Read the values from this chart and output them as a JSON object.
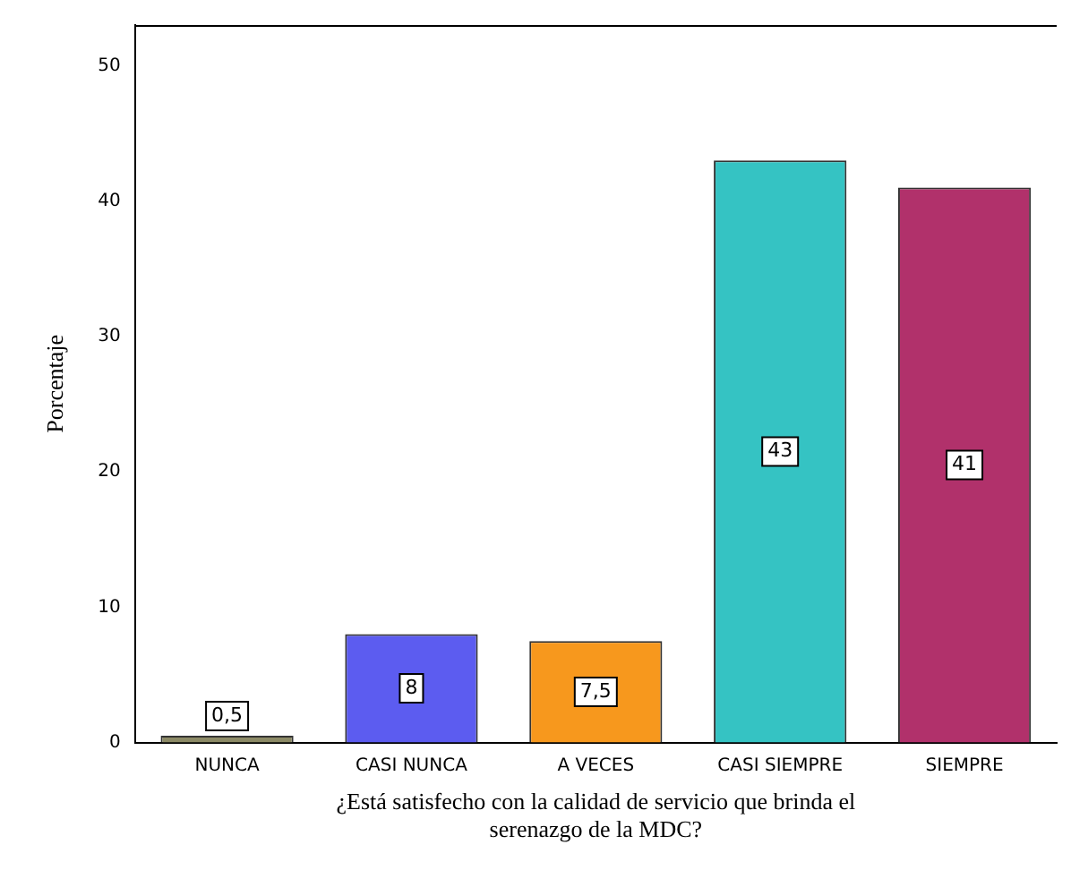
{
  "chart_data": {
    "type": "bar",
    "xlabel": "¿Está satisfecho con la calidad de servicio que brinda el serenazgo de la MDC?",
    "ylabel": "Porcentaje",
    "categories": [
      "NUNCA",
      "CASI NUNCA",
      "A VECES",
      "CASI SIEMPRE",
      "SIEMPRE"
    ],
    "values": [
      0.5,
      8,
      7.5,
      43,
      41
    ],
    "colors": [
      "#8c8a66",
      "#5c5cf0",
      "#f7981d",
      "#35c3c3",
      "#b1316b"
    ],
    "value_labels": [
      "0,5",
      "8",
      "7,5",
      "43",
      "41"
    ],
    "ylim": [
      0,
      53
    ],
    "yticks": [
      0,
      10,
      20,
      30,
      40,
      50
    ],
    "grid": false,
    "legend": false
  }
}
